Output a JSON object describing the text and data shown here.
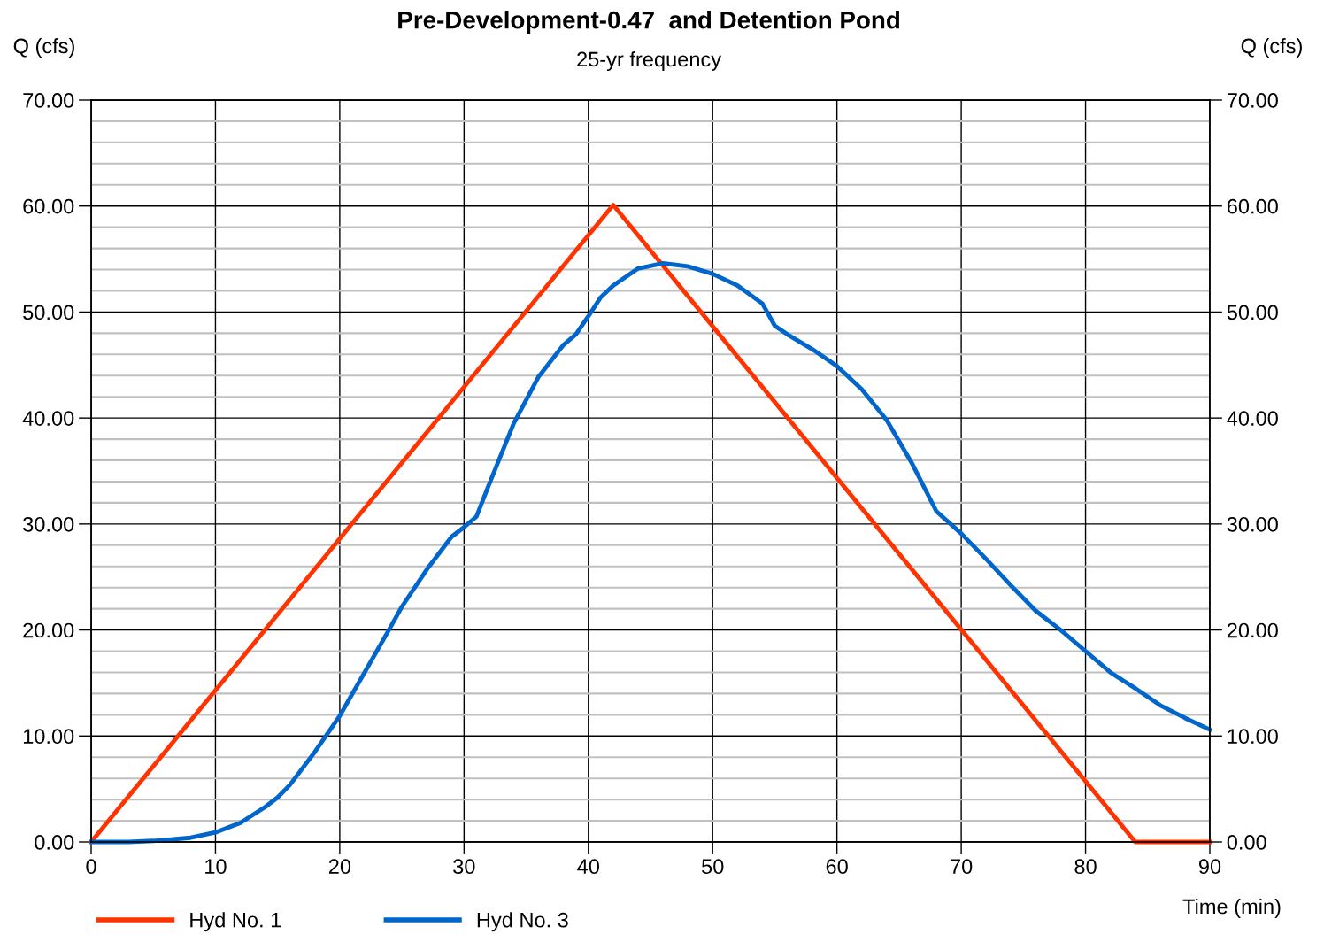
{
  "chart_data": {
    "type": "line",
    "title": "Pre-Development-0.47  and Detention Pond",
    "subtitle": "25-yr frequency",
    "xlabel": "Time (min)",
    "ylabel": "Q (cfs)",
    "y2label": "Q (cfs)",
    "xlim": [
      0,
      90
    ],
    "xticks": [
      0,
      10,
      20,
      30,
      40,
      50,
      60,
      70,
      80,
      90
    ],
    "ylim": [
      0,
      70
    ],
    "yticks": [
      {
        "value": 0,
        "label": "0.00"
      },
      {
        "value": 10,
        "label": "10.00"
      },
      {
        "value": 20,
        "label": "20.00"
      },
      {
        "value": 30,
        "label": "30.00"
      },
      {
        "value": 40,
        "label": "40.00"
      },
      {
        "value": 50,
        "label": "50.00"
      },
      {
        "value": 60,
        "label": "60.00"
      },
      {
        "value": 70,
        "label": "70.00"
      }
    ],
    "y2lim": [
      0,
      70
    ],
    "y2ticks": [
      {
        "value": 0,
        "label": "0.00"
      },
      {
        "value": 10,
        "label": "10.00"
      },
      {
        "value": 20,
        "label": "20.00"
      },
      {
        "value": 30,
        "label": "30.00"
      },
      {
        "value": 40,
        "label": "40.00"
      },
      {
        "value": 50,
        "label": "50.00"
      },
      {
        "value": 60,
        "label": "60.00"
      },
      {
        "value": 70,
        "label": "70.00"
      }
    ],
    "grid": true,
    "legend": "bottom",
    "marker": "none",
    "line_style": "solid",
    "series": [
      {
        "name": "Hyd No. 1",
        "color": "#ff3300",
        "x": [
          0,
          42,
          84,
          90
        ],
        "values": [
          0,
          60.1,
          0,
          0
        ]
      },
      {
        "name": "Hyd No. 3",
        "color": "#0066cc",
        "x": [
          0,
          3,
          5,
          8,
          10,
          12,
          14,
          15,
          16,
          18,
          20,
          22,
          24,
          25,
          27,
          29,
          30,
          31,
          32,
          34,
          36,
          38,
          39,
          40,
          41,
          42,
          44,
          46,
          48,
          50,
          52,
          54,
          55,
          56,
          58,
          60,
          62,
          64,
          66,
          68,
          70,
          72,
          74,
          76,
          78,
          80,
          82,
          84,
          86,
          88,
          90
        ],
        "values": [
          0,
          0,
          0.1,
          0.4,
          0.9,
          1.8,
          3.3,
          4.2,
          5.4,
          8.5,
          11.9,
          16.0,
          20.1,
          22.2,
          25.7,
          28.8,
          29.7,
          30.7,
          33.7,
          39.5,
          43.9,
          46.9,
          47.9,
          49.6,
          51.4,
          52.5,
          54.1,
          54.6,
          54.3,
          53.6,
          52.5,
          50.8,
          48.7,
          47.9,
          46.5,
          44.9,
          42.7,
          39.8,
          35.8,
          31.2,
          29.1,
          26.7,
          24.2,
          21.8,
          20.0,
          18.0,
          16.0,
          14.5,
          12.9,
          11.7,
          10.6
        ]
      }
    ]
  }
}
